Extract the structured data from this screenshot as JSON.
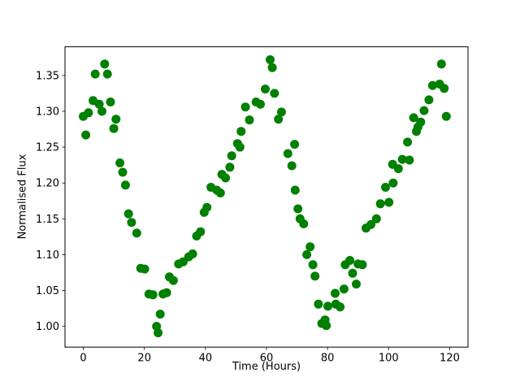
{
  "figure": {
    "background": "#ffffff"
  },
  "chart_data": {
    "type": "scatter",
    "title": "",
    "xlabel": "Time (Hours)",
    "ylabel": "Normalised Flux",
    "marker": "circle",
    "marker_color": "#008000",
    "marker_radius_px": 5.5,
    "grid": false,
    "legend_position": "none",
    "xlim": [
      -6,
      126
    ],
    "ylim": [
      0.971,
      1.39
    ],
    "x_ticks": [
      0,
      20,
      40,
      60,
      80,
      100,
      120
    ],
    "y_ticks": [
      "1.00",
      "1.05",
      "1.10",
      "1.15",
      "1.20",
      "1.25",
      "1.30",
      "1.35"
    ],
    "series": [
      {
        "name": "normalised-flux",
        "points": [
          [
            0.0,
            1.293
          ],
          [
            0.8,
            1.267
          ],
          [
            1.7,
            1.298
          ],
          [
            3.2,
            1.315
          ],
          [
            3.9,
            1.352
          ],
          [
            5.2,
            1.31
          ],
          [
            6.1,
            1.3
          ],
          [
            7.0,
            1.366
          ],
          [
            7.9,
            1.352
          ],
          [
            8.9,
            1.313
          ],
          [
            10.0,
            1.276
          ],
          [
            10.7,
            1.289
          ],
          [
            12.0,
            1.228
          ],
          [
            12.9,
            1.215
          ],
          [
            13.8,
            1.197
          ],
          [
            14.8,
            1.157
          ],
          [
            15.8,
            1.145
          ],
          [
            17.5,
            1.13
          ],
          [
            18.8,
            1.081
          ],
          [
            20.1,
            1.08
          ],
          [
            21.5,
            1.045
          ],
          [
            22.8,
            1.044
          ],
          [
            24.0,
            1.0
          ],
          [
            24.5,
            0.991
          ],
          [
            25.2,
            1.017
          ],
          [
            26.1,
            1.045
          ],
          [
            27.3,
            1.047
          ],
          [
            28.2,
            1.069
          ],
          [
            29.5,
            1.064
          ],
          [
            31.2,
            1.087
          ],
          [
            32.7,
            1.09
          ],
          [
            34.5,
            1.097
          ],
          [
            35.8,
            1.101
          ],
          [
            37.1,
            1.126
          ],
          [
            38.4,
            1.132
          ],
          [
            39.6,
            1.159
          ],
          [
            40.5,
            1.166
          ],
          [
            41.8,
            1.194
          ],
          [
            43.7,
            1.19
          ],
          [
            44.9,
            1.186
          ],
          [
            45.4,
            1.212
          ],
          [
            46.6,
            1.207
          ],
          [
            48.0,
            1.222
          ],
          [
            48.6,
            1.238
          ],
          [
            50.5,
            1.255
          ],
          [
            51.3,
            1.25
          ],
          [
            51.7,
            1.272
          ],
          [
            53.1,
            1.306
          ],
          [
            54.4,
            1.288
          ],
          [
            56.6,
            1.313
          ],
          [
            58.0,
            1.31
          ],
          [
            59.6,
            1.331
          ],
          [
            61.2,
            1.372
          ],
          [
            61.9,
            1.361
          ],
          [
            62.6,
            1.325
          ],
          [
            63.9,
            1.289
          ],
          [
            64.9,
            1.299
          ],
          [
            67.0,
            1.241
          ],
          [
            68.3,
            1.224
          ],
          [
            69.2,
            1.254
          ],
          [
            69.4,
            1.19
          ],
          [
            70.3,
            1.164
          ],
          [
            71.0,
            1.15
          ],
          [
            72.2,
            1.143
          ],
          [
            73.2,
            1.1
          ],
          [
            74.3,
            1.111
          ],
          [
            75.2,
            1.086
          ],
          [
            75.9,
            1.07
          ],
          [
            77.0,
            1.031
          ],
          [
            78.1,
            1.004
          ],
          [
            79.2,
            1.009
          ],
          [
            79.6,
            1.001
          ],
          [
            80.1,
            1.028
          ],
          [
            82.5,
            1.046
          ],
          [
            82.7,
            1.031
          ],
          [
            84.1,
            1.027
          ],
          [
            85.4,
            1.052
          ],
          [
            85.8,
            1.086
          ],
          [
            87.3,
            1.092
          ],
          [
            88.2,
            1.074
          ],
          [
            89.4,
            1.059
          ],
          [
            90.0,
            1.087
          ],
          [
            91.4,
            1.086
          ],
          [
            92.6,
            1.137
          ],
          [
            94.2,
            1.142
          ],
          [
            96.0,
            1.15
          ],
          [
            97.3,
            1.171
          ],
          [
            99.0,
            1.194
          ],
          [
            100.1,
            1.173
          ],
          [
            101.3,
            1.226
          ],
          [
            101.5,
            1.2
          ],
          [
            103.2,
            1.22
          ],
          [
            104.5,
            1.233
          ],
          [
            106.2,
            1.257
          ],
          [
            106.8,
            1.232
          ],
          [
            108.2,
            1.291
          ],
          [
            109.1,
            1.272
          ],
          [
            109.6,
            1.278
          ],
          [
            110.5,
            1.285
          ],
          [
            111.6,
            1.301
          ],
          [
            113.2,
            1.316
          ],
          [
            114.4,
            1.336
          ],
          [
            116.7,
            1.338
          ],
          [
            117.3,
            1.366
          ],
          [
            118.2,
            1.332
          ],
          [
            118.9,
            1.293
          ]
        ]
      }
    ]
  }
}
